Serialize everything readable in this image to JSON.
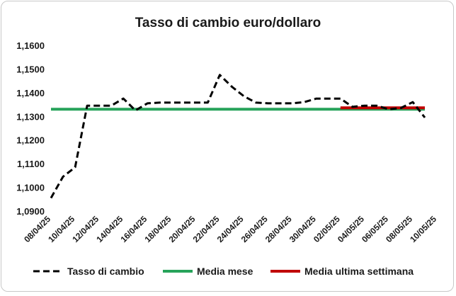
{
  "chart_data": {
    "type": "line",
    "title": "Tasso di cambio euro/dollaro",
    "xlabel": "",
    "ylabel": "",
    "x_range": [
      "2025-04-08",
      "2025-05-10"
    ],
    "x_tick_labels": [
      "08/04/25",
      "10/04/25",
      "12/04/25",
      "14/04/25",
      "16/04/25",
      "18/04/25",
      "20/04/25",
      "22/04/25",
      "24/04/25",
      "26/04/25",
      "28/04/25",
      "30/04/25",
      "02/05/25",
      "04/05/25",
      "06/05/25",
      "08/05/25",
      "10/05/25"
    ],
    "ylim": [
      1.09,
      1.16
    ],
    "y_tick_labels": [
      "1,0900",
      "1,1000",
      "1,1100",
      "1,1200",
      "1,1300",
      "1,1400",
      "1,1500",
      "1,1600"
    ],
    "grid": false,
    "legend_position": "bottom",
    "series": [
      {
        "name": "Tasso di cambio",
        "color": "#000000",
        "style": "dashed",
        "x": [
          "2025-04-08",
          "2025-04-09",
          "2025-04-10",
          "2025-04-11",
          "2025-04-12",
          "2025-04-13",
          "2025-04-14",
          "2025-04-15",
          "2025-04-16",
          "2025-04-17",
          "2025-04-18",
          "2025-04-19",
          "2025-04-20",
          "2025-04-21",
          "2025-04-22",
          "2025-04-23",
          "2025-04-24",
          "2025-04-25",
          "2025-04-26",
          "2025-04-27",
          "2025-04-28",
          "2025-04-29",
          "2025-04-30",
          "2025-05-01",
          "2025-05-02",
          "2025-05-03",
          "2025-05-04",
          "2025-05-05",
          "2025-05-06",
          "2025-05-07",
          "2025-05-08",
          "2025-05-09"
        ],
        "values": [
          1.0955,
          1.1045,
          1.1085,
          1.1345,
          1.1345,
          1.1345,
          1.1375,
          1.1325,
          1.1355,
          1.1358,
          1.1358,
          1.1358,
          1.1358,
          1.1358,
          1.1475,
          1.1425,
          1.1385,
          1.1358,
          1.1355,
          1.1355,
          1.1355,
          1.136,
          1.1375,
          1.1375,
          1.1375,
          1.134,
          1.1345,
          1.1345,
          1.133,
          1.1335,
          1.136,
          1.1295
        ]
      },
      {
        "name": "Media mese",
        "color": "#27a35a",
        "style": "solid",
        "x": [
          "2025-04-08",
          "2025-05-09"
        ],
        "values": [
          1.133,
          1.133
        ]
      },
      {
        "name": "Media ultima settimana",
        "color": "#c00000",
        "style": "solid",
        "x": [
          "2025-05-02",
          "2025-05-09"
        ],
        "values": [
          1.1336,
          1.1336
        ]
      }
    ]
  }
}
